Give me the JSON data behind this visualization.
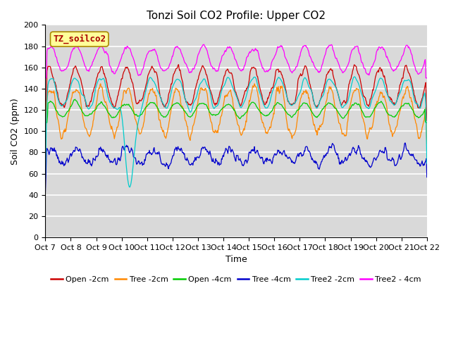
{
  "title": "Tonzi Soil CO2 Profile: Upper CO2",
  "ylabel": "Soil CO2 (ppm)",
  "xlabel": "Time",
  "annotation": "TZ_soilco2",
  "ylim": [
    0,
    200
  ],
  "yticks": [
    0,
    20,
    40,
    60,
    80,
    100,
    120,
    140,
    160,
    180,
    200
  ],
  "xtick_labels": [
    "Oct 7",
    "Oct 8",
    "Oct 9",
    "Oct 10",
    "Oct 11",
    "Oct 12",
    "Oct 13",
    "Oct 14",
    "Oct 15",
    "Oct 16",
    "Oct 17",
    "Oct 18",
    "Oct 19",
    "Oct 20",
    "Oct 21",
    "Oct 22"
  ],
  "series": [
    {
      "label": "Open -2cm",
      "color": "#cc0000"
    },
    {
      "label": "Tree -2cm",
      "color": "#ff8800"
    },
    {
      "label": "Open -4cm",
      "color": "#00cc00"
    },
    {
      "label": "Tree -4cm",
      "color": "#0000cc"
    },
    {
      "label": "Tree2 -2cm",
      "color": "#00cccc"
    },
    {
      "label": "Tree2 - 4cm",
      "color": "#ff00ff"
    }
  ],
  "bg_color": "#d9d9d9",
  "grid_color": "#ffffff",
  "fig_bg_color": "#ffffff",
  "title_fontsize": 11,
  "label_fontsize": 9,
  "tick_fontsize": 8,
  "legend_fontsize": 8,
  "annotation_facecolor": "#ffff99",
  "annotation_edgecolor": "#aa8800",
  "annotation_textcolor": "#aa0000",
  "linewidth": 0.9
}
